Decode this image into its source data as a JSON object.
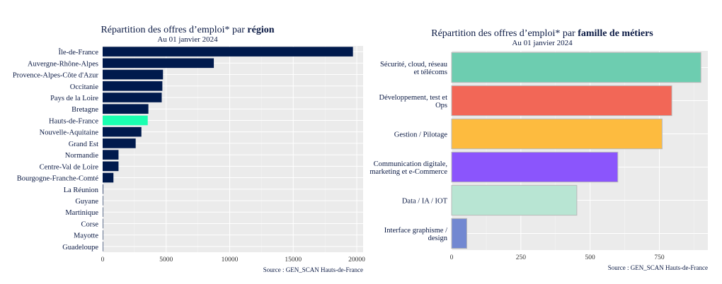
{
  "chart_data": [
    {
      "type": "bar",
      "orientation": "horizontal",
      "title_prefix": "Répartition des offres d’emploi* par ",
      "title_bold": "région",
      "subtitle": "Au 01 janvier 2024",
      "source": "Source : GEN_SCAN Hauts-de-France",
      "xlim": [
        0,
        20500
      ],
      "xticks": [
        0,
        5000,
        10000,
        15000,
        20000
      ],
      "xtick_labels": [
        "0",
        "5000",
        "10000",
        "15000",
        "20000"
      ],
      "grid": true,
      "categories": [
        "Île-de-France",
        "Auvergne-Rhône-Alpes",
        "Provence-Alpes-Côte d'Azur",
        "Occitanie",
        "Pays de la Loire",
        "Bretagne",
        "Hauts-de-France",
        "Nouvelle-Aquitaine",
        "Grand Est",
        "Normandie",
        "Centre-Val de Loire",
        "Bourgogne-Franche-Comté",
        "La Réunion",
        "Guyane",
        "Martinique",
        "Corse",
        "Mayotte",
        "Guadeloupe"
      ],
      "values": [
        19700,
        8750,
        4750,
        4700,
        4650,
        3600,
        3550,
        3050,
        2600,
        1250,
        1250,
        850,
        40,
        10,
        10,
        5,
        5,
        5
      ],
      "colors": [
        "#001a4d",
        "#001a4d",
        "#001a4d",
        "#001a4d",
        "#001a4d",
        "#001a4d",
        "#1affb0",
        "#001a4d",
        "#001a4d",
        "#001a4d",
        "#001a4d",
        "#001a4d",
        "#001a4d",
        "#001a4d",
        "#001a4d",
        "#001a4d",
        "#001a4d",
        "#001a4d"
      ]
    },
    {
      "type": "bar",
      "orientation": "horizontal",
      "title_prefix": "Répartition des offres d’emploi* par ",
      "title_bold": "famille de métiers",
      "subtitle": "Au 01 janvier 2024",
      "source": "Source : GEN_SCAN Hauts-de-France",
      "xlim": [
        0,
        925
      ],
      "xticks": [
        0,
        250,
        500,
        750
      ],
      "xtick_labels": [
        "0",
        "250",
        "500",
        "750"
      ],
      "grid": true,
      "categories": [
        [
          "Sécurité, cloud, réseau",
          "et télécoms"
        ],
        [
          "Développement, test et",
          "Ops"
        ],
        [
          "Gestion / Pilotage"
        ],
        [
          "Communication digitale,",
          "marketing et e-Commerce"
        ],
        [
          "Data / IA / IOT"
        ],
        [
          "Interface graphisme /",
          "design"
        ]
      ],
      "values": [
        900,
        795,
        760,
        600,
        452,
        55
      ],
      "colors": [
        "#6dcdb0",
        "#f26757",
        "#fdbb3f",
        "#8b55fc",
        "#b8e5d3",
        "#7288d1"
      ]
    }
  ]
}
